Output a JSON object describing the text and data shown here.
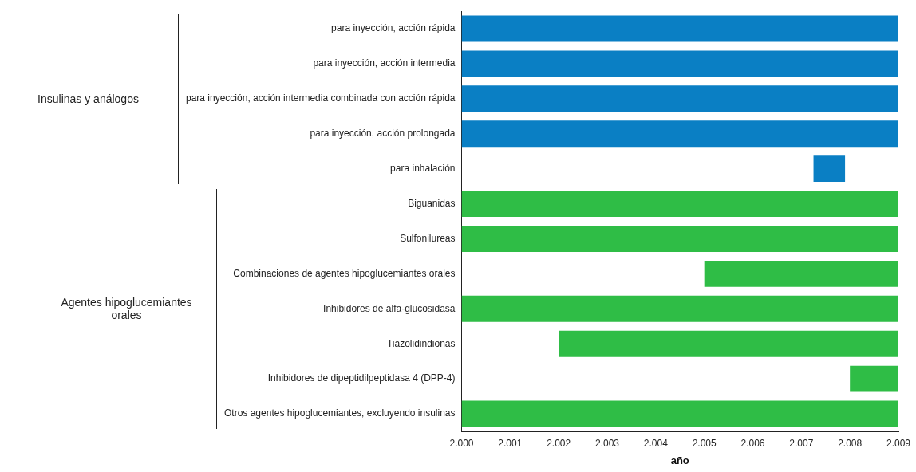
{
  "chart_data": {
    "type": "bar",
    "orientation": "horizontal",
    "xlabel": "año",
    "categories": [
      "para inyección, acción rápida",
      "para inyección, acción intermedia",
      "para inyección, acción intermedia combinada con acción rápida",
      "para inyección, acción prolongada",
      "para inhalación",
      "Biguanidas",
      "Sulfonilureas",
      "Combinaciones de agentes hipoglucemiantes orales",
      "Inhibidores de alfa-glucosidasa",
      "Tiazolidindionas",
      "Inhibidores de dipeptidilpeptidasa 4 (DPP-4)",
      "Otros agentes hipoglucemiantes, excluyendo insulinas"
    ],
    "base": [
      2000,
      2000,
      2000,
      2000,
      2007.25,
      2000,
      2000,
      2005,
      2000,
      2002,
      2008,
      2000
    ],
    "values": [
      9,
      9,
      9,
      9,
      0.65,
      9,
      9,
      4,
      9,
      7,
      1,
      9
    ],
    "colors": [
      "#0a7fc4",
      "#0a7fc4",
      "#0a7fc4",
      "#0a7fc4",
      "#0a7fc4",
      "#2fbd46",
      "#2fbd46",
      "#2fbd46",
      "#2fbd46",
      "#2fbd46",
      "#2fbd46",
      "#2fbd46"
    ],
    "xlim": [
      2000,
      2009
    ],
    "xticks": [
      {
        "value": 2000,
        "label": "2.000"
      },
      {
        "value": 2001,
        "label": "2.001"
      },
      {
        "value": 2002,
        "label": "2.002"
      },
      {
        "value": 2003,
        "label": "2.003"
      },
      {
        "value": 2004,
        "label": "2.004"
      },
      {
        "value": 2005,
        "label": "2.005"
      },
      {
        "value": 2006,
        "label": "2.006"
      },
      {
        "value": 2007,
        "label": "2.007"
      },
      {
        "value": 2008,
        "label": "2.008"
      },
      {
        "value": 2009,
        "label": "2.009"
      }
    ],
    "annotations": [
      "Insulinas y análogos",
      "Agentes hipoglucemiantes orales"
    ],
    "grid": false,
    "legend": false
  }
}
